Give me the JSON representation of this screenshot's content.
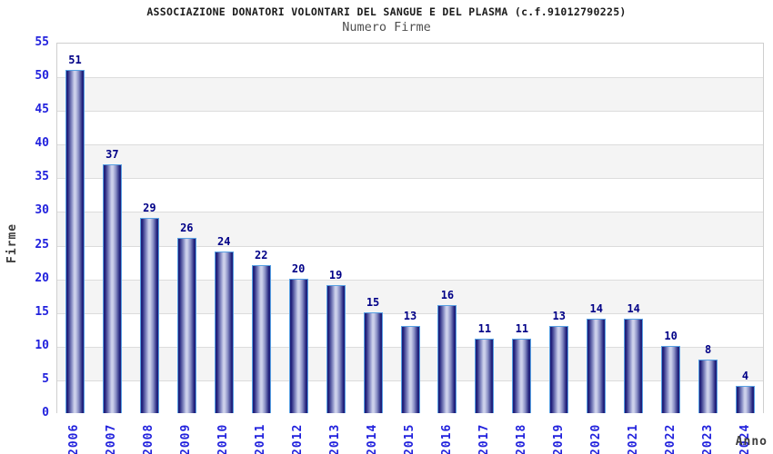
{
  "header": {
    "title": "ASSOCIAZIONE DONATORI VOLONTARI DEL SANGUE E DEL PLASMA (c.f.91012790225)",
    "subtitle": "Numero Firme"
  },
  "chart_data": {
    "type": "bar",
    "title": "ASSOCIAZIONE DONATORI VOLONTARI DEL SANGUE E DEL PLASMA (c.f.91012790225)",
    "subtitle": "Numero Firme",
    "xlabel": "Anno",
    "ylabel": "Firme",
    "categories": [
      "2006",
      "2007",
      "2008",
      "2009",
      "2010",
      "2011",
      "2012",
      "2013",
      "2014",
      "2015",
      "2016",
      "2017",
      "2018",
      "2019",
      "2020",
      "2021",
      "2022",
      "2023",
      "2024"
    ],
    "values": [
      51,
      37,
      29,
      26,
      24,
      22,
      20,
      19,
      15,
      13,
      16,
      11,
      11,
      13,
      14,
      14,
      10,
      8,
      4
    ],
    "ylim": [
      0,
      55
    ],
    "yticks": [
      0,
      5,
      10,
      15,
      20,
      25,
      30,
      35,
      40,
      45,
      50,
      55
    ],
    "grid": true,
    "legend_position": "none",
    "band_pattern": "alternating horizontal bands every 5 units",
    "colors": {
      "tick_label_blue": "#2222dd",
      "value_label_navy": "#000087",
      "bar_dark": "#20207b",
      "bar_mid": "#8d93c8",
      "bar_light": "#ccd0ea",
      "bar_border": "#57a0e3",
      "band_gray": "#f4f4f4",
      "gridline": "#dcdcdc",
      "plot_border": "#cfcfcf",
      "title_color": "#1b1b1b",
      "subtitle_color": "#4f4f4f",
      "axis_title_color": "#3d3d3d"
    }
  }
}
